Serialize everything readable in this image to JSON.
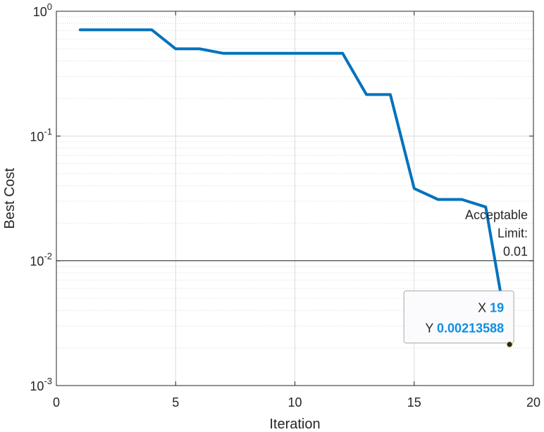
{
  "chart_data": {
    "type": "line",
    "xlabel": "Iteration",
    "ylabel": "Best Cost",
    "xlim": [
      0,
      20
    ],
    "ylim": [
      0.001,
      1
    ],
    "yscale": "log",
    "grid": true,
    "x_ticks": [
      0,
      5,
      10,
      15,
      20
    ],
    "x_tick_labels": [
      "0",
      "5",
      "10",
      "15",
      "20"
    ],
    "y_ticks": [
      {
        "value": 0.001,
        "base": "10",
        "exp": "-3"
      },
      {
        "value": 0.01,
        "base": "10",
        "exp": "-2"
      },
      {
        "value": 0.1,
        "base": "10",
        "exp": "-1"
      },
      {
        "value": 1,
        "base": "10",
        "exp": "0"
      }
    ],
    "series": [
      {
        "color": "#0072bd",
        "x": [
          1,
          2,
          3,
          4,
          5,
          6,
          7,
          8,
          9,
          10,
          11,
          12,
          13,
          14,
          15,
          16,
          17,
          18,
          19
        ],
        "y": [
          0.71,
          0.71,
          0.71,
          0.71,
          0.5,
          0.5,
          0.46,
          0.46,
          0.46,
          0.46,
          0.46,
          0.46,
          0.215,
          0.215,
          0.038,
          0.031,
          0.031,
          0.027,
          0.00213588
        ]
      }
    ],
    "reference_line": {
      "y": 0.01,
      "color": "#262626",
      "label_lines": [
        "Acceptable",
        "Limit:",
        "0.01"
      ]
    },
    "datatip": {
      "x_label": "X",
      "x_value": "19",
      "y_label": "Y",
      "y_value": "0.00213588",
      "point_x": 19,
      "point_y": 0.00213588
    }
  }
}
